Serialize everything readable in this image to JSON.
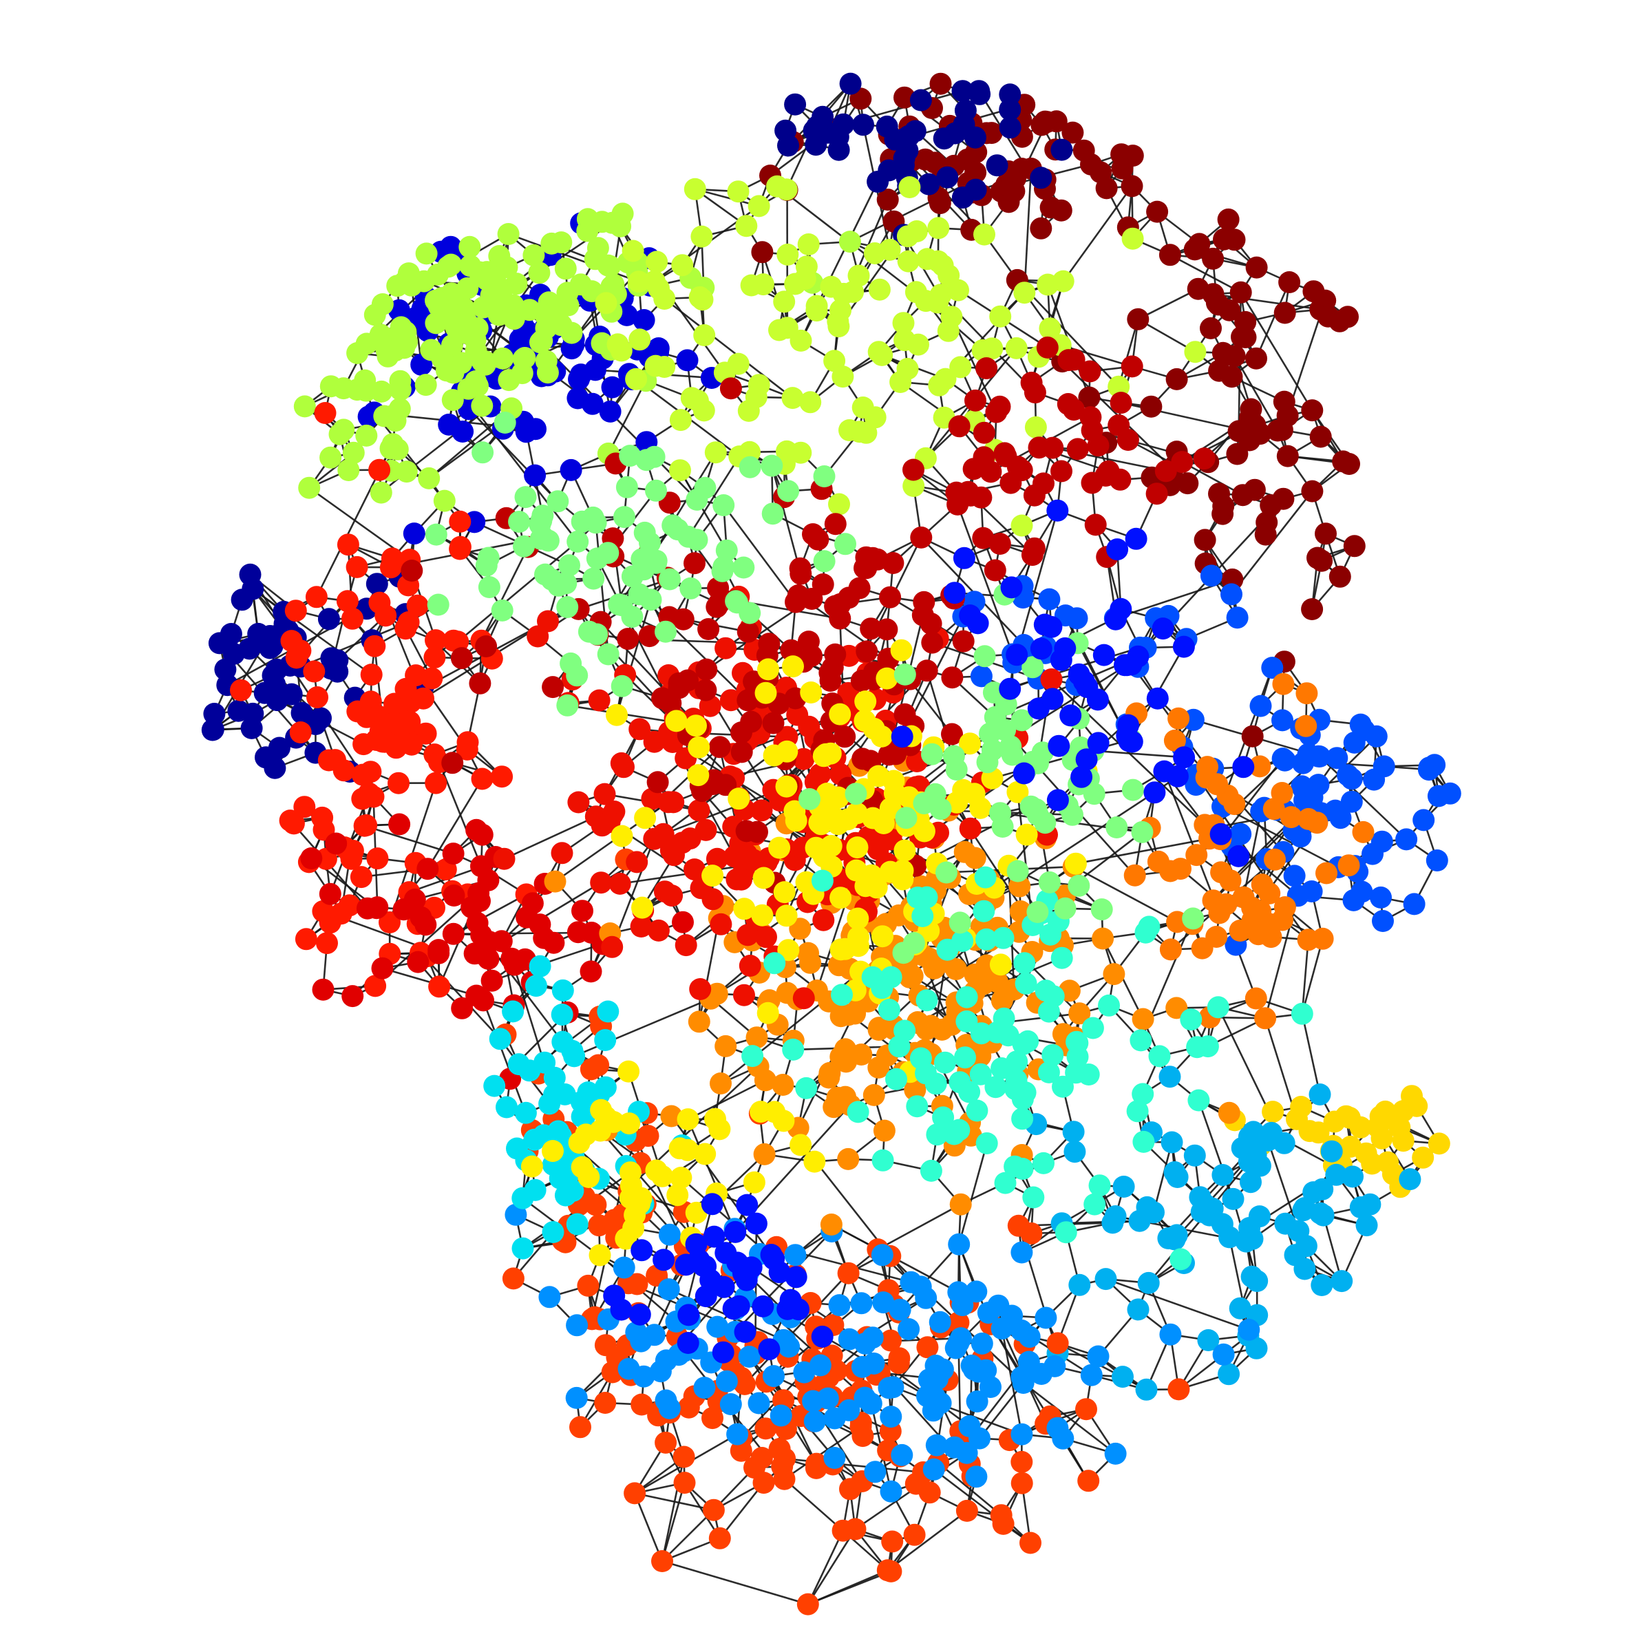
{
  "diagram": {
    "type": "network-graph",
    "description_kind": "community-colored force-directed network",
    "background_color": "#ffffff",
    "edge_color": "#1a1a1a",
    "communities": [
      {
        "name": "dark-red-top-right",
        "color": "#8b0000"
      },
      {
        "name": "navy-top",
        "color": "#00008b"
      },
      {
        "name": "blue-left",
        "color": "#0000dd"
      },
      {
        "name": "navy-left",
        "color": "#00009a"
      },
      {
        "name": "lime-top-left",
        "color": "#b0ff3c"
      },
      {
        "name": "yellow-green-top",
        "color": "#c8ff30"
      },
      {
        "name": "red-left",
        "color": "#ff1a00"
      },
      {
        "name": "crimson-left",
        "color": "#e00000"
      },
      {
        "name": "royal-blue-right",
        "color": "#0050ff"
      },
      {
        "name": "orange-right",
        "color": "#ff7800"
      },
      {
        "name": "gold-bottom-right",
        "color": "#ffd800"
      },
      {
        "name": "sky-blue-bottom-right",
        "color": "#00b0f0"
      },
      {
        "name": "orange-red-bottom",
        "color": "#ff4000"
      },
      {
        "name": "azure-bottom",
        "color": "#0090ff"
      },
      {
        "name": "cyan-bottom-left",
        "color": "#00e0f0"
      },
      {
        "name": "center-orange",
        "color": "#ff8c00"
      },
      {
        "name": "center-red",
        "color": "#ee1000"
      },
      {
        "name": "center-dark-red",
        "color": "#c00000"
      },
      {
        "name": "center-yellow",
        "color": "#ffee00"
      },
      {
        "name": "center-cyan",
        "color": "#30ffd0"
      },
      {
        "name": "center-light-green",
        "color": "#80ff80"
      },
      {
        "name": "center-blue",
        "color": "#0010ff"
      }
    ]
  }
}
